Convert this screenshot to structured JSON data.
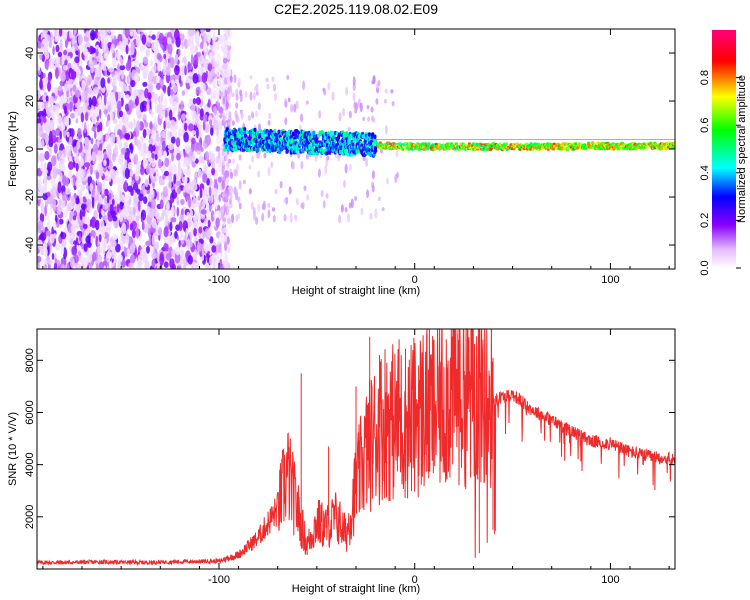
{
  "title": "C2E2.2025.119.08.02.E09",
  "chart_data": [
    {
      "type": "heatmap",
      "xlabel": "Height of straight line (km)",
      "ylabel": "Frequency (Hz)",
      "xlim": [
        -193,
        133
      ],
      "ylim": [
        -50,
        50
      ],
      "xticks": [
        -100,
        0,
        100
      ],
      "yticks": [
        -40,
        -20,
        0,
        20,
        40
      ],
      "colorbar": {
        "label": "Normalized spectral amplitude",
        "range": [
          0,
          1
        ],
        "ticks": [
          "0.0",
          "0.2",
          "0.4",
          "0.6",
          "0.8"
        ],
        "colors": [
          "#ffffff",
          "#a000ff",
          "#0000ff",
          "#00ffff",
          "#00ff00",
          "#ffff00",
          "#ff0000",
          "#ff0080"
        ]
      },
      "regions": [
        {
          "x": [
            -193,
            -98
          ],
          "freq": [
            -50,
            50
          ],
          "level": "low (~0.05-0.15), scattered noise"
        },
        {
          "x": [
            -98,
            -20
          ],
          "freq": [
            -3,
            7
          ],
          "level": "0.2-0.5"
        },
        {
          "x": [
            -20,
            133
          ],
          "freq": [
            0,
            3
          ],
          "level": "0.4-0.9"
        }
      ],
      "signal_trace": {
        "x": [
          -97,
          -90,
          -80,
          -70,
          -60,
          -50,
          -40,
          -30,
          -20,
          -10,
          0,
          10,
          20,
          30,
          40,
          50,
          60,
          70,
          80,
          90,
          100,
          110,
          120,
          133
        ],
        "freq": [
          4,
          4,
          3.5,
          3,
          3,
          2.5,
          2.5,
          2,
          1.5,
          1.2,
          1,
          1,
          1,
          1,
          1,
          1,
          1,
          1,
          1,
          1.5,
          1.2,
          1.2,
          1.2,
          1.2
        ]
      }
    },
    {
      "type": "line",
      "xlabel": "Height of straight line (km)",
      "ylabel": "SNR (10 * V/V)",
      "xlim": [
        -193,
        133
      ],
      "ylim": [
        0,
        9200
      ],
      "xticks": [
        -100,
        0,
        100
      ],
      "yticks": [
        2000,
        4000,
        6000,
        8000
      ],
      "color": "#ee2a2a",
      "x": [
        -193,
        -180,
        -160,
        -140,
        -120,
        -100,
        -90,
        -80,
        -70,
        -65,
        -60,
        -55,
        -50,
        -45,
        -40,
        -35,
        -30,
        -25,
        -20,
        -15,
        -10,
        -5,
        0,
        5,
        10,
        15,
        20,
        25,
        30,
        35,
        40,
        45,
        50,
        60,
        70,
        80,
        90,
        100,
        110,
        120,
        133
      ],
      "y": [
        250,
        250,
        270,
        250,
        280,
        300,
        550,
        1200,
        2300,
        3700,
        2300,
        900,
        1800,
        1600,
        2000,
        1300,
        3200,
        4500,
        5200,
        5800,
        5600,
        5700,
        5800,
        6200,
        6000,
        6600,
        6900,
        6800,
        6800,
        6700,
        6500,
        6600,
        6700,
        6100,
        5700,
        5300,
        4900,
        4800,
        4500,
        4300,
        4200
      ],
      "spikes": [
        {
          "x": -58,
          "y": 7500
        },
        {
          "x": -44,
          "y": 4700
        },
        {
          "x": -30,
          "y": 7000
        },
        {
          "x": -23,
          "y": 8900
        },
        {
          "x": -18,
          "y": 8200
        },
        {
          "x": -8,
          "y": 8800
        },
        {
          "x": 2,
          "y": 7800
        },
        {
          "x": 8,
          "y": 8200
        },
        {
          "x": 22,
          "y": 9000
        },
        {
          "x": 28,
          "y": 7600
        },
        {
          "x": 40,
          "y": 8100
        },
        {
          "x": 33,
          "y": 600
        },
        {
          "x": 40,
          "y": 1500
        }
      ]
    }
  ]
}
